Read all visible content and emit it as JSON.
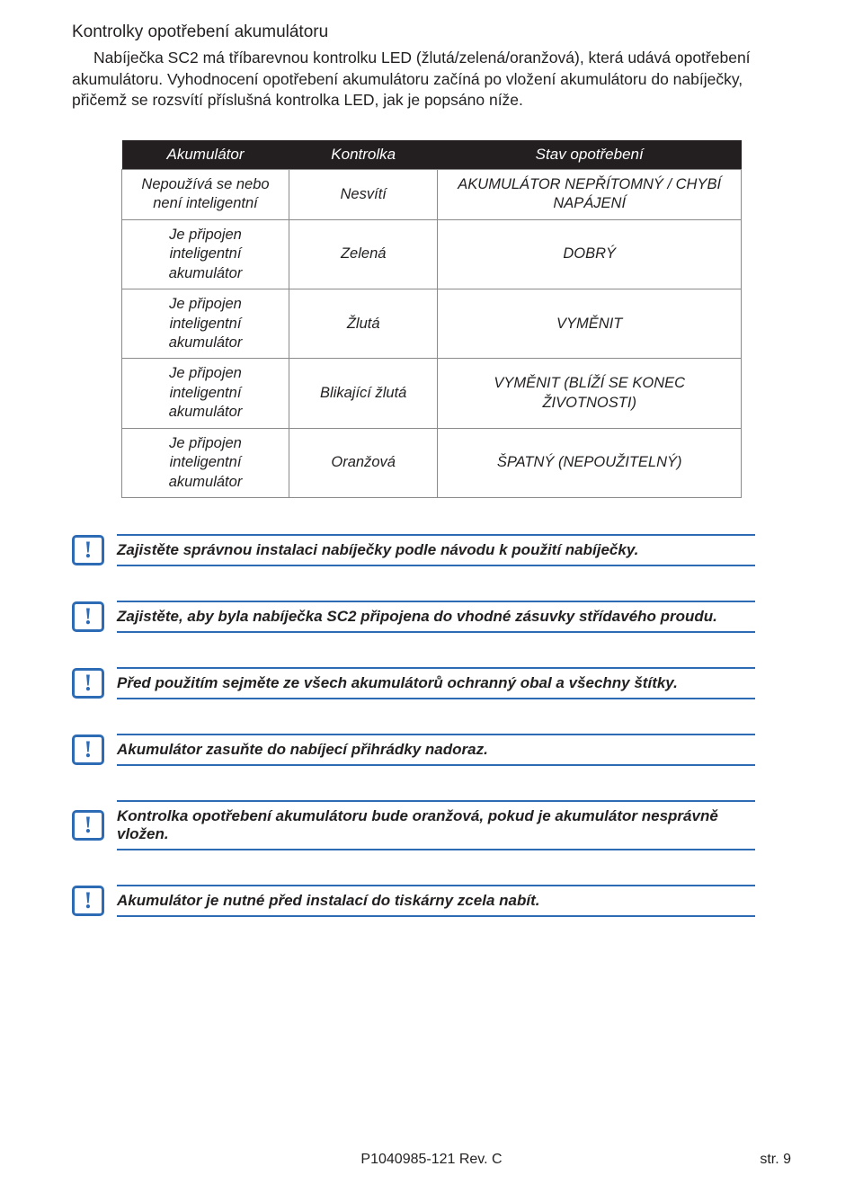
{
  "heading": "Kontrolky opotřebení akumulátoru",
  "intro_para": "Nabíječka SC2 má tříbarevnou kontrolku LED (žlutá/zelená/oranžová), která udává opotřebení akumulátoru. Vyhodnocení opotřebení akumulátoru začíná po vložení akumulátoru do nabíječky, přičemž se rozsvítí příslušná kontrolka LED, jak je popsáno níže.",
  "table": {
    "columns": [
      "Akumulátor",
      "Kontrolka",
      "Stav opotřebení"
    ],
    "rows": [
      [
        "Nepoužívá se nebo není inteligentní",
        "Nesvítí",
        "AKUMULÁTOR NEPŘÍTOMNÝ / CHYBÍ NAPÁJENÍ"
      ],
      [
        "Je připojen inteligentní akumulátor",
        "Zelená",
        "DOBRÝ"
      ],
      [
        "Je připojen inteligentní akumulátor",
        "Žlutá",
        "VYMĚNIT"
      ],
      [
        "Je připojen inteligentní akumulátor",
        "Blikající žlutá",
        "VYMĚNIT (BLÍŽÍ SE KONEC ŽIVOTNOSTI)"
      ],
      [
        "Je připojen inteligentní akumulátor",
        "Oranžová",
        "ŠPATNÝ (NEPOUŽITELNÝ)"
      ]
    ],
    "header_bg": "#231f20",
    "header_fg": "#ffffff",
    "cell_border": "#8b8a8a"
  },
  "notes": [
    "Zajistěte správnou instalaci nabíječky podle návodu k použití nabíječky.",
    "Zajistěte, aby byla nabíječka SC2 připojena do vhodné zásuvky střídavého proudu.",
    "Před použitím sejměte ze všech akumulátorů ochranný obal a všechny štítky.",
    "Akumulátor zasuňte do nabíjecí přihrádky nadoraz.",
    "Kontrolka opotřebení akumulátoru bude oranžová, pokud je akumulátor nesprávně vložen.",
    "Akumulátor je nutné před instalací do tiskárny zcela nabít."
  ],
  "note_icon_glyph": "!",
  "note_border_color": "#2e6bb5",
  "footer": {
    "center": "P1040985-121 Rev. C",
    "right": "str.  9"
  }
}
